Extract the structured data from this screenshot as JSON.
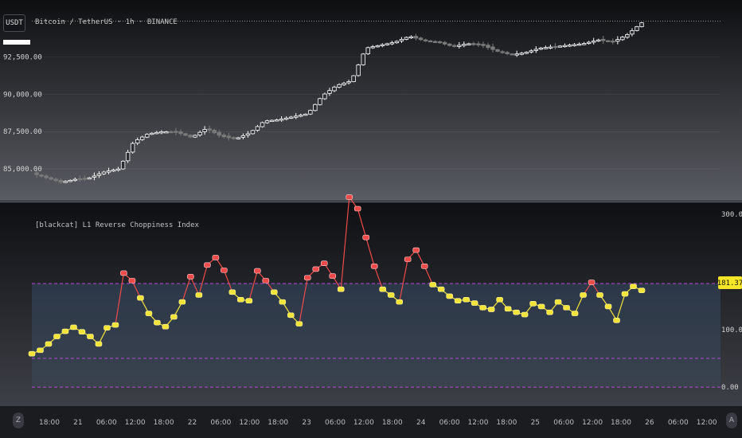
{
  "header": {
    "ticker": "USDT",
    "title": "Bitcoin / TetherUS · 1h · BINANCE"
  },
  "indicator": {
    "title": "[blackcat] L1 Reverse Choppiness Index",
    "current_value": "181.37",
    "levels": [
      180,
      50,
      0
    ]
  },
  "price_axis": {
    "ticks": [
      {
        "label": "92,500.00",
        "value": 92500
      },
      {
        "label": "90,000.00",
        "value": 90000
      },
      {
        "label": "87,500.00",
        "value": 87500
      },
      {
        "label": "85,000.00",
        "value": 85000
      }
    ]
  },
  "indicator_axis": {
    "ticks": [
      {
        "label": "300.00",
        "value": 300
      },
      {
        "label": "100.00",
        "value": 100
      },
      {
        "label": "0.00",
        "value": 0
      }
    ]
  },
  "time_axis": {
    "labels": [
      "18:00",
      "21",
      "06:00",
      "12:00",
      "18:00",
      "22",
      "06:00",
      "12:00",
      "18:00",
      "23",
      "06:00",
      "12:00",
      "18:00",
      "24",
      "06:00",
      "12:00",
      "18:00",
      "25",
      "06:00",
      "12:00",
      "18:00",
      "26",
      "06:00",
      "12:00"
    ]
  },
  "controls": {
    "left_button": "Z",
    "right_button": "A"
  },
  "colors": {
    "up_candle": "#ffffff",
    "down_candle": "#7a7a7a",
    "chop_high": "#ef4a4a",
    "chop_low": "#f3e43a",
    "level_line": "#b349d6",
    "value_badge": "#f5e627"
  },
  "chart_data": [
    {
      "type": "candlestick",
      "title": "Bitcoin / TetherUS · 1h · BINANCE",
      "ylabel": "",
      "ylim": [
        84000,
        95200
      ],
      "x_label_keypoints": [
        "18:00",
        "21",
        "06:00",
        "12:00",
        "18:00",
        "22",
        "06:00",
        "12:00",
        "18:00",
        "23",
        "06:00",
        "12:00",
        "18:00",
        "24",
        "06:00",
        "12:00",
        "18:00",
        "25",
        "06:00",
        "12:00",
        "18:00",
        "26",
        "06:00",
        "12:00"
      ],
      "close_keypoints": [
        84700,
        84400,
        84100,
        84300,
        84400,
        84800,
        85000,
        86800,
        87350,
        87500,
        87450,
        87100,
        87700,
        87200,
        87000,
        87400,
        88200,
        88300,
        88500,
        88700,
        89900,
        90600,
        90900,
        93100,
        93300,
        93500,
        93900,
        93600,
        93500,
        93200,
        93400,
        93300,
        92900,
        92650,
        92800,
        93100,
        93200,
        93300,
        93400,
        93650,
        93500,
        94000,
        94800
      ]
    },
    {
      "type": "line",
      "title": "[blackcat] L1 Reverse Choppiness Index",
      "ylabel": "",
      "ylim": [
        -20,
        345
      ],
      "levels": [
        180,
        50,
        0
      ],
      "current_value": 181.37,
      "values_keypoints": [
        58,
        64,
        75,
        88,
        97,
        104,
        96,
        88,
        75,
        103,
        108,
        198,
        185,
        155,
        128,
        112,
        105,
        122,
        148,
        192,
        160,
        212,
        225,
        203,
        165,
        152,
        150,
        202,
        185,
        165,
        148,
        125,
        110,
        190,
        205,
        215,
        193,
        170,
        330,
        310,
        260,
        210,
        170,
        160,
        148,
        222,
        238,
        210,
        178,
        170,
        158,
        150,
        152,
        146,
        138,
        135,
        152,
        136,
        130,
        126,
        145,
        140,
        130,
        148,
        138,
        128,
        160,
        182,
        160,
        140,
        116,
        162,
        175,
        168
      ]
    }
  ]
}
